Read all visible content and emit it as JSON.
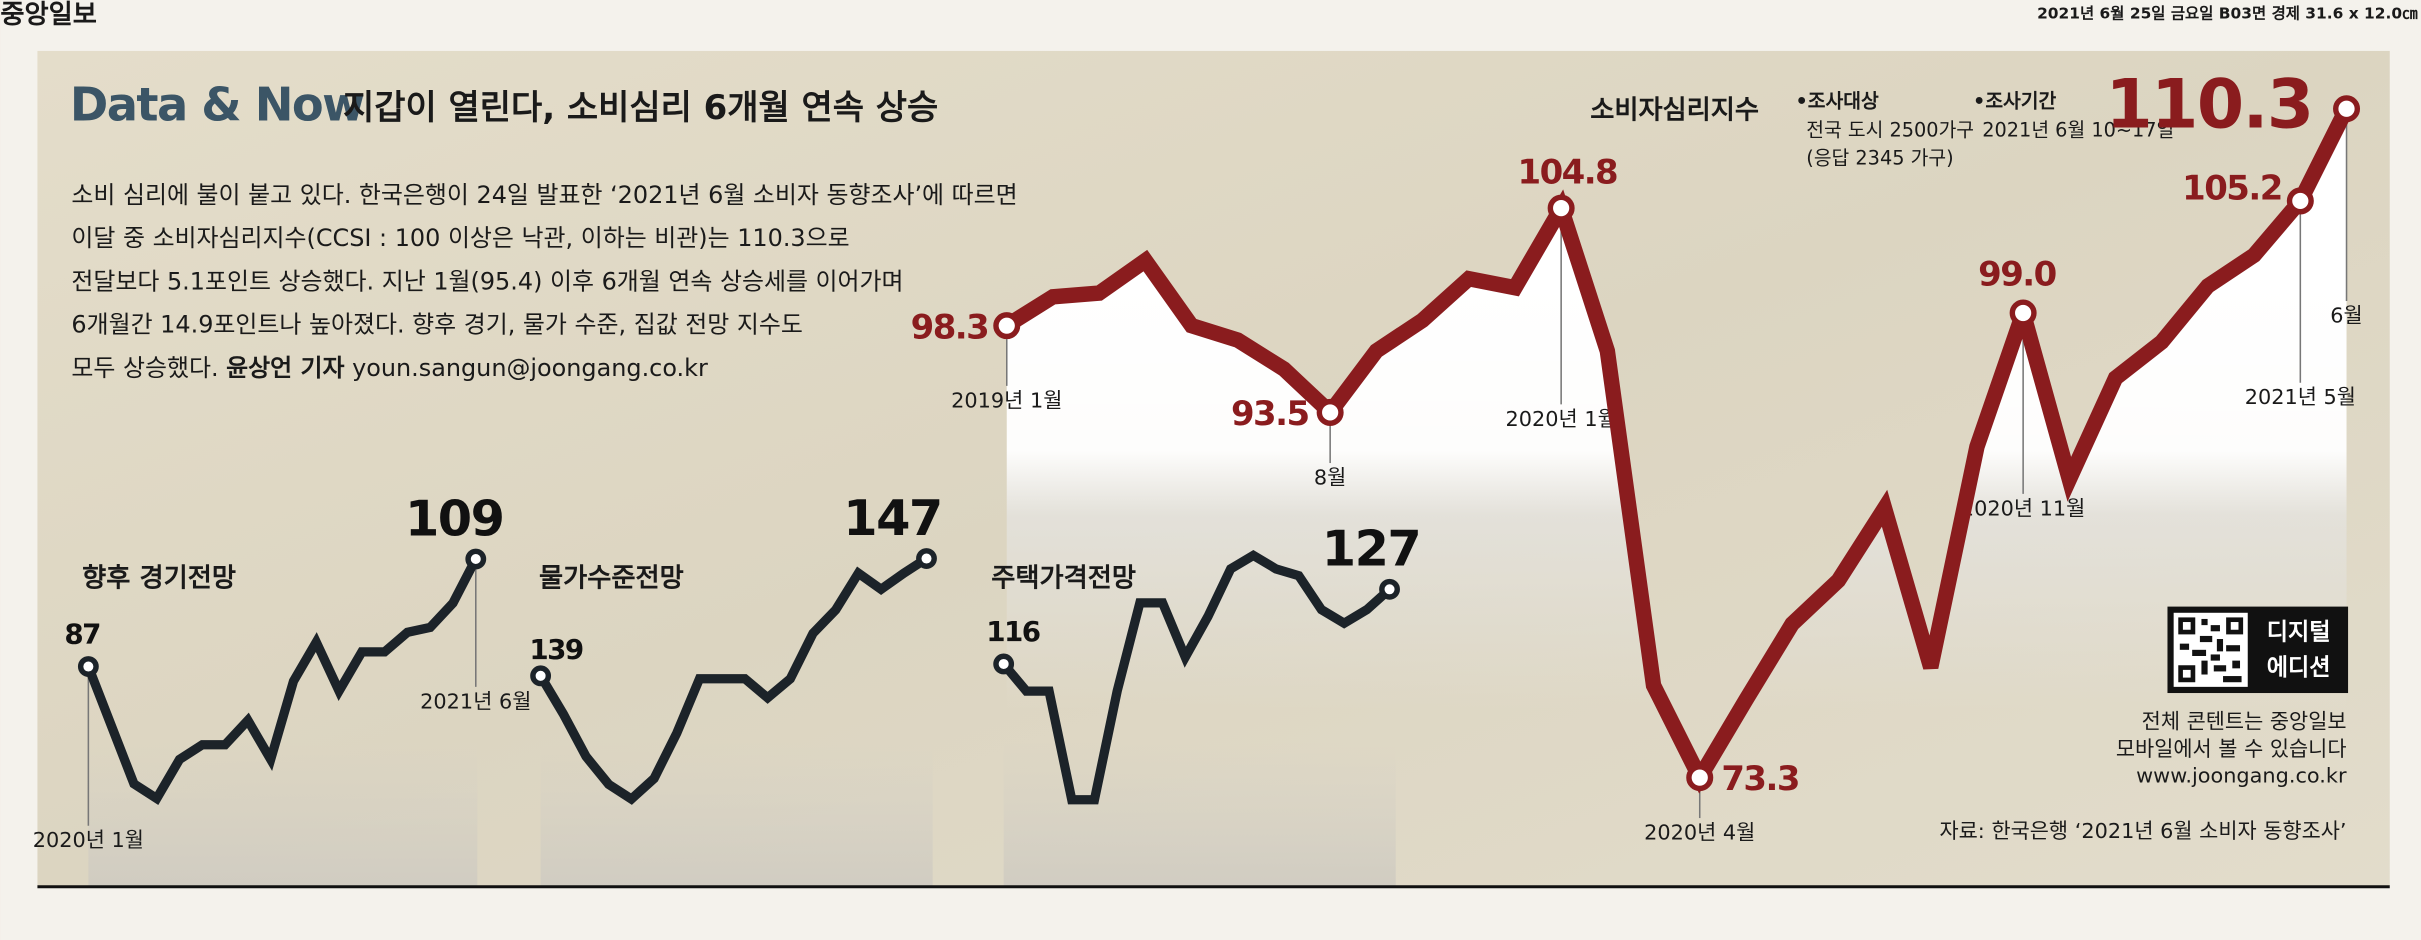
{
  "header": {
    "logo": "중앙일보",
    "edition": "2021년 6월 25일 금요일 B03면 경제 31.6 x 12.0㎝"
  },
  "title": "Data & Now",
  "subtitle": "지갑이 열린다, 소비심리 6개월 연속 상승",
  "body": {
    "lines": [
      "소비 심리에 불이 붙고 있다. 한국은행이 24일 발표한 ‘2021년 6월 소비자 동향조사’에 따르면",
      "이달 중 소비자심리지수(CCSI : 100 이상은 낙관, 이하는 비관)는 110.3으로",
      "전달보다 5.1포인트 상승했다. 지난 1월(95.4) 이후 6개월 연속 상승세를 이어가며",
      "6개월간 14.9포인트나 높아졌다. 향후 경기, 물가 수준, 집값 전망 지수도",
      "모두 상승했다."
    ],
    "byline": "윤상언 기자",
    "email": "youn.sangun@joongang.co.kr"
  },
  "survey": [
    {
      "label": "•조사대상",
      "lines": [
        "전국 도시 2500가구",
        "(응답 2345 가구)"
      ]
    },
    {
      "label": "•조사기간",
      "lines": [
        "2021년 6월 10~17일"
      ]
    }
  ],
  "digital": {
    "label": [
      "디지털",
      "에디션"
    ],
    "notes": [
      "전체 콘텐트는 중앙일보",
      "모바일에서 볼 수 있습니다",
      "www.joongang.co.kr"
    ]
  },
  "source": "자료: 한국은행 ‘2021년 6월 소비자 동향조사’",
  "chart_data": [
    {
      "type": "line",
      "title": "소비자심리지수",
      "color": "#8a1c1e",
      "categories": [
        "2019년 1월",
        null,
        null,
        null,
        null,
        null,
        null,
        "8월",
        null,
        null,
        null,
        null,
        "2020년 1월",
        null,
        null,
        "2020년 4월",
        null,
        null,
        null,
        null,
        null,
        null,
        "2020년 11월",
        null,
        null,
        null,
        null,
        null,
        "2021년 5월",
        "6월"
      ],
      "values": [
        98.3,
        99.9,
        100.1,
        101.9,
        98.3,
        97.5,
        95.9,
        93.5,
        96.9,
        98.6,
        100.9,
        100.4,
        104.8,
        96.9,
        78.4,
        73.3,
        77.6,
        81.8,
        84.2,
        88.2,
        79.4,
        91.6,
        99.0,
        89.8,
        95.4,
        97.4,
        100.5,
        102.2,
        105.2,
        110.3
      ],
      "value_labels": [
        "98.3",
        null,
        null,
        null,
        null,
        null,
        null,
        "93.5",
        null,
        null,
        null,
        null,
        "104.8",
        null,
        null,
        "73.3",
        null,
        null,
        null,
        null,
        null,
        null,
        "99.0",
        null,
        null,
        null,
        null,
        null,
        "105.2",
        "110.3"
      ],
      "ylim": [
        68.5,
        112.9
      ]
    },
    {
      "type": "line",
      "title": "향후 경기전망",
      "color": "#1c2329",
      "categories": [
        "2020년 1월",
        null,
        null,
        null,
        null,
        null,
        null,
        null,
        null,
        null,
        null,
        null,
        null,
        null,
        null,
        null,
        null,
        "2021년 6월"
      ],
      "values": [
        87,
        75,
        63,
        60,
        68,
        71,
        71,
        76,
        68,
        84,
        92,
        82,
        90,
        90,
        94,
        95,
        100,
        109
      ],
      "value_labels": [
        "87",
        null,
        null,
        null,
        null,
        null,
        null,
        null,
        null,
        null,
        null,
        null,
        null,
        null,
        null,
        null,
        null,
        "109"
      ],
      "ylim": [
        56,
        116
      ]
    },
    {
      "type": "line",
      "title": "물가수준전망",
      "color": "#1c2329",
      "values": [
        139,
        136.4,
        133.5,
        131.6,
        130.6,
        132,
        135.1,
        138.8,
        138.8,
        138.8,
        137.5,
        138.8,
        141.9,
        143.5,
        146,
        144.9,
        146,
        147
      ],
      "value_labels": [
        "139",
        null,
        null,
        null,
        null,
        null,
        null,
        null,
        null,
        null,
        null,
        null,
        null,
        null,
        null,
        null,
        null,
        "147"
      ],
      "ylim": [
        129.3,
        149.3
      ]
    },
    {
      "type": "line",
      "title": "주택가격전망",
      "color": "#1c2329",
      "values": [
        116,
        112,
        112,
        96,
        96,
        112,
        125,
        125,
        117,
        123,
        130,
        132,
        130,
        129,
        124,
        122,
        124,
        127
      ],
      "value_labels": [
        "116",
        null,
        null,
        null,
        null,
        null,
        null,
        null,
        null,
        null,
        null,
        null,
        null,
        null,
        null,
        null,
        null,
        "127"
      ],
      "ylim": [
        93.3,
        136.5
      ]
    }
  ]
}
